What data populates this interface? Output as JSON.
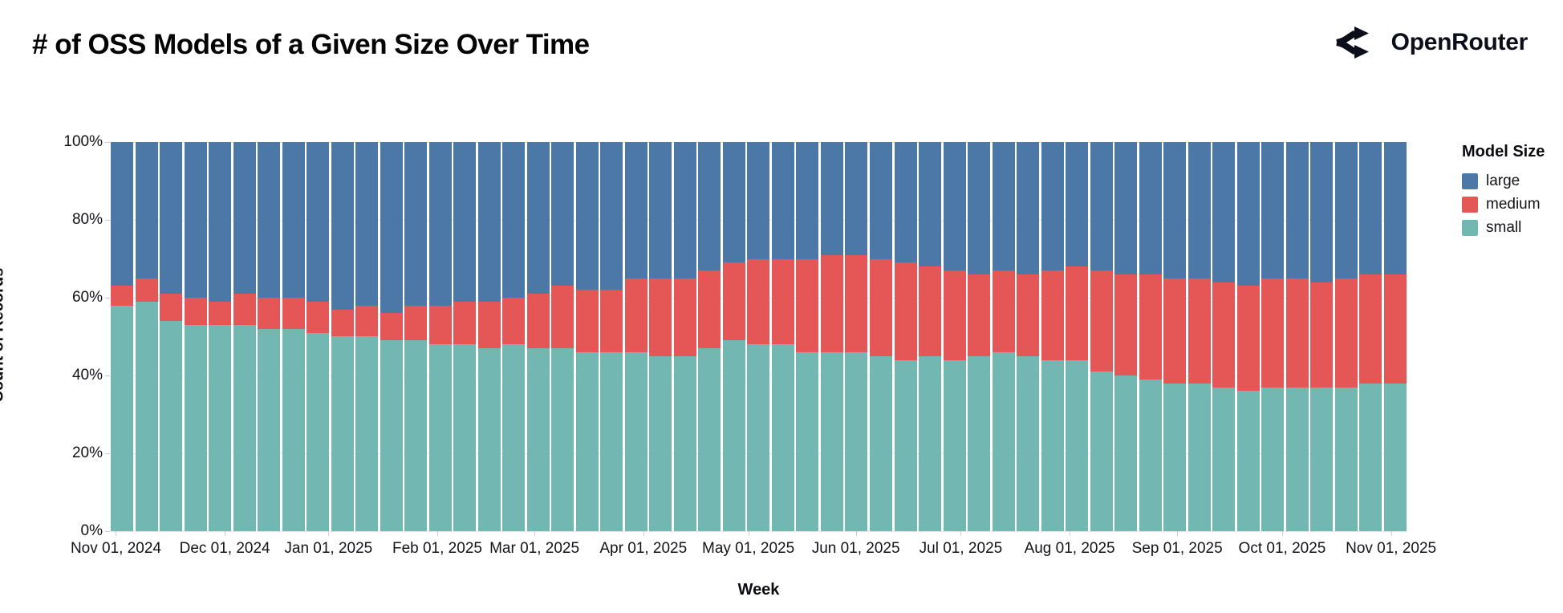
{
  "header": {
    "title": "# of OSS Models of a Given Size Over Time",
    "brand": "OpenRouter"
  },
  "chart_data": {
    "type": "bar",
    "stacked": true,
    "normalized": true,
    "title": "# of OSS Models of a Given Size Over Time",
    "xlabel": "Week",
    "ylabel": "Count of Records",
    "ylim": [
      0,
      100
    ],
    "grid": true,
    "y_ticks": [
      "100%",
      "80%",
      "60%",
      "40%",
      "20%",
      "0%"
    ],
    "x_ticks": [
      "Nov 01, 2024",
      "Dec 01, 2024",
      "Jan 01, 2025",
      "Feb 01, 2025",
      "Mar 01, 2025",
      "Apr 01, 2025",
      "May 01, 2025",
      "Jun 01, 2025",
      "Jul 01, 2025",
      "Aug 01, 2025",
      "Sep 01, 2025",
      "Oct 01, 2025",
      "Nov 01, 2025"
    ],
    "x_tick_positions": [
      0.004,
      0.088,
      0.168,
      0.252,
      0.327,
      0.411,
      0.492,
      0.575,
      0.656,
      0.74,
      0.823,
      0.904,
      0.988
    ],
    "legend": {
      "title": "Model Size",
      "position": "right",
      "entries": [
        {
          "label": "large",
          "color": "#4c78a8"
        },
        {
          "label": "medium",
          "color": "#e45756"
        },
        {
          "label": "small",
          "color": "#72b7b2"
        }
      ]
    },
    "weeks": [
      "2024-10-27",
      "2024-11-03",
      "2024-11-10",
      "2024-11-17",
      "2024-11-24",
      "2024-12-01",
      "2024-12-08",
      "2024-12-15",
      "2024-12-22",
      "2024-12-29",
      "2025-01-05",
      "2025-01-12",
      "2025-01-19",
      "2025-01-26",
      "2025-02-02",
      "2025-02-09",
      "2025-02-16",
      "2025-02-23",
      "2025-03-02",
      "2025-03-09",
      "2025-03-16",
      "2025-03-23",
      "2025-03-30",
      "2025-04-06",
      "2025-04-13",
      "2025-04-20",
      "2025-04-27",
      "2025-05-04",
      "2025-05-11",
      "2025-05-18",
      "2025-05-25",
      "2025-06-01",
      "2025-06-08",
      "2025-06-15",
      "2025-06-22",
      "2025-06-29",
      "2025-07-06",
      "2025-07-13",
      "2025-07-20",
      "2025-07-27",
      "2025-08-03",
      "2025-08-10",
      "2025-08-17",
      "2025-08-24",
      "2025-08-31",
      "2025-09-07",
      "2025-09-14",
      "2025-09-21",
      "2025-09-28",
      "2025-10-05",
      "2025-10-12",
      "2025-10-19",
      "2025-10-26"
    ],
    "series": [
      {
        "name": "large",
        "color": "#4c78a8",
        "values": [
          37,
          35,
          39,
          40,
          41,
          39,
          40,
          40,
          41,
          43,
          42,
          44,
          42,
          42,
          41,
          41,
          40,
          39,
          37,
          38,
          38,
          35,
          35,
          35,
          33,
          31,
          30,
          30,
          30,
          29,
          29,
          30,
          31,
          32,
          33,
          34,
          33,
          34,
          33,
          32,
          33,
          34,
          34,
          35,
          35,
          36,
          37,
          35,
          35,
          36,
          35,
          34,
          34
        ]
      },
      {
        "name": "medium",
        "color": "#e45756",
        "values": [
          5,
          6,
          7,
          7,
          6,
          8,
          8,
          8,
          8,
          7,
          8,
          7,
          9,
          10,
          11,
          12,
          12,
          14,
          16,
          16,
          16,
          19,
          20,
          20,
          20,
          20,
          22,
          22,
          24,
          25,
          25,
          25,
          25,
          23,
          23,
          21,
          21,
          21,
          23,
          24,
          26,
          26,
          27,
          27,
          27,
          27,
          27,
          28,
          28,
          27,
          28,
          28,
          28
        ]
      },
      {
        "name": "small",
        "color": "#72b7b2",
        "values": [
          58,
          59,
          54,
          53,
          53,
          53,
          52,
          52,
          51,
          50,
          50,
          49,
          49,
          48,
          48,
          47,
          48,
          47,
          47,
          46,
          46,
          46,
          45,
          45,
          47,
          49,
          48,
          48,
          46,
          46,
          46,
          45,
          44,
          45,
          44,
          45,
          46,
          45,
          44,
          44,
          41,
          40,
          39,
          38,
          38,
          37,
          36,
          37,
          37,
          37,
          37,
          38,
          38
        ]
      }
    ],
    "colors": {
      "background": "#ffffff",
      "gridline": "#e4e4ea",
      "tick": "#c9c9cf",
      "text": "#131318"
    }
  }
}
